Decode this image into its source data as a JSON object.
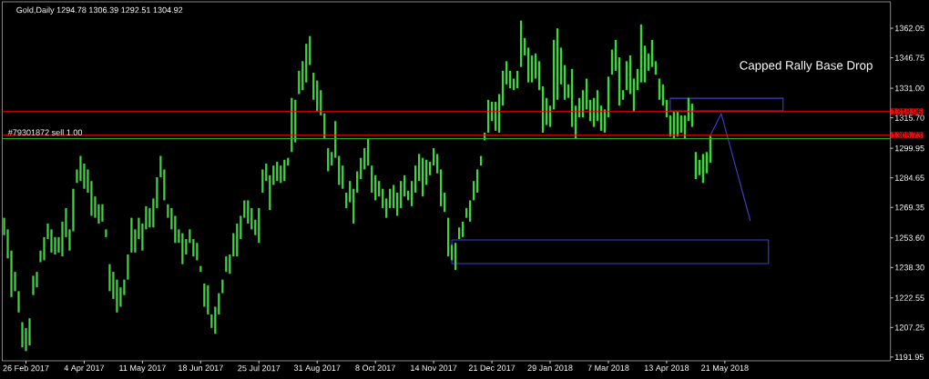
{
  "chart_data": {
    "type": "bar",
    "title": "Gold,Daily 1294.78 1306.39 1292.51 1304.92",
    "annotations": [
      "Capped Rally Base Drop",
      {
        "text": "#79301872 sell 1.00",
        "y": 1304.92
      }
    ],
    "categories": [
      null,
      null,
      null,
      null,
      null,
      null,
      "26 Feb 2017",
      null,
      null,
      null,
      null,
      null,
      null,
      null,
      null,
      null,
      null,
      null,
      null,
      null,
      null,
      null,
      "4 Apr 2017",
      null,
      null,
      null,
      null,
      null,
      null,
      null,
      null,
      null,
      null,
      null,
      null,
      null,
      null,
      null,
      "11 May 2017",
      null,
      null,
      null,
      null,
      null,
      null,
      null,
      null,
      null,
      null,
      null,
      null,
      null,
      null,
      null,
      "18 Jun 2017",
      null,
      null,
      null,
      null,
      null,
      null,
      null,
      null,
      null,
      null,
      null,
      null,
      null,
      null,
      null,
      "25 Jul 2017",
      null,
      null,
      null,
      null,
      null,
      null,
      null,
      null,
      null,
      null,
      null,
      null,
      null,
      null,
      null,
      "31 Aug 2017",
      null,
      null,
      null,
      null,
      null,
      null,
      null,
      null,
      null,
      null,
      null,
      null,
      null,
      null,
      null,
      "8 Oct 2017",
      null,
      null,
      null,
      null,
      null,
      null,
      null,
      null,
      null,
      null,
      null,
      null,
      null,
      null,
      null,
      "14 Nov 2017",
      null,
      null,
      null,
      null,
      null,
      null,
      null,
      null,
      null,
      null,
      null,
      null,
      null,
      null,
      null,
      "21 Dec 2017",
      null,
      null,
      null,
      null,
      null,
      null,
      null,
      null,
      null,
      null,
      null,
      null,
      null,
      null,
      null,
      "29 Jan 2018",
      null,
      null,
      null,
      null,
      null,
      null,
      null,
      null,
      null,
      null,
      null,
      null,
      null,
      null,
      null,
      "7 Mar 2018",
      null,
      null,
      null,
      null,
      null,
      null,
      null,
      null,
      null,
      null,
      null,
      null,
      null,
      null,
      null,
      "13 Apr 2018",
      null,
      null,
      null,
      null,
      null,
      null,
      null,
      null,
      null,
      null,
      null,
      null,
      null,
      null,
      null,
      "21 May 2018",
      null,
      null,
      null,
      null,
      null,
      null,
      null,
      null,
      null,
      null,
      null,
      null,
      null,
      null,
      null,
      null,
      null,
      null,
      null,
      null,
      null,
      null,
      null,
      null,
      null,
      null,
      null,
      null,
      null,
      null,
      null,
      null,
      null,
      null,
      null,
      null,
      null,
      null,
      null,
      null,
      null,
      null,
      null,
      null,
      null
    ],
    "ylim": [
      1190,
      1375.7
    ],
    "yticks": [
      {
        "value": 1191.95,
        "label": "1191.95"
      },
      {
        "value": 1207.25,
        "label": "1207.25"
      },
      {
        "value": 1222.55,
        "label": "1222.55"
      },
      {
        "value": 1238.3,
        "label": "1238.30"
      },
      {
        "value": 1253.6,
        "label": "1253.60"
      },
      {
        "value": 1269.35,
        "label": "1269.35"
      },
      {
        "value": 1284.65,
        "label": "1284.65"
      },
      {
        "value": 1299.95,
        "label": "1299.95"
      },
      {
        "value": 1315.7,
        "label": "1315.70"
      },
      {
        "value": 1331,
        "label": "1331.00"
      },
      {
        "value": 1346.75,
        "label": "1346.75"
      },
      {
        "value": 1362.05,
        "label": "1362.05"
      }
    ],
    "ref_lines": [
      {
        "axis": "y",
        "value": 1318.96,
        "label": "1318.96",
        "color": "#ff0000"
      },
      {
        "axis": "y",
        "value": 1306.73,
        "label": "1306.73",
        "color": "#ff0000"
      },
      {
        "axis": "y",
        "value": 1304.92,
        "color": "#22aa22"
      }
    ],
    "series": [
      {
        "color": "#33dd33",
        "base": [
          1255,
          1243,
          1223,
          1226,
          1215,
          1197,
          1195,
          1198,
          1224,
          1228,
          1241,
          1242,
          1253,
          1246,
          1245,
          1246,
          1244,
          1254,
          1247,
          1257,
          1282,
          1283,
          1279,
          1277,
          1265,
          1264,
          1261,
          1262,
          1254,
          1226,
          1222,
          1215,
          1218,
          1224,
          1232,
          1246,
          1246,
          1253,
          1247,
          1258,
          1259,
          1259,
          1269,
          1285,
          1273,
          1264,
          1258,
          1251,
          1251,
          1240,
          1245,
          1251,
          1244,
          1242,
          1236,
          1218,
          1214,
          1207,
          1204,
          1214,
          1225,
          1236,
          1235,
          1244,
          1244,
          1253,
          1264,
          1261,
          1258,
          1255,
          1251,
          1277,
          1283,
          1268,
          1281,
          1283,
          1282,
          1283,
          1291,
          1298,
          1303,
          1328,
          1330,
          1334,
          1343,
          1325,
          1319,
          1317,
          1305,
          1288,
          1291,
          1295,
          1281,
          1279,
          1269,
          1272,
          1261,
          1277,
          1284,
          1289,
          1291,
          1277,
          1273,
          1275,
          1269,
          1264,
          1269,
          1269,
          1265,
          1269,
          1275,
          1273,
          1270,
          1277,
          1283,
          1275,
          1281,
          1286,
          1291,
          1287,
          1270,
          1267,
          1244,
          1242,
          1237,
          1253,
          1254,
          1264,
          1262,
          1273,
          1277,
          1291,
          1304,
          1308,
          1314,
          1309,
          1308,
          1322,
          1333,
          1331,
          1330,
          1331,
          1342,
          1348,
          1334,
          1334,
          1336,
          1330,
          1308,
          1312,
          1311,
          1320,
          1325,
          1333,
          1325,
          1326,
          1311,
          1305,
          1316,
          1316,
          1320,
          1314,
          1311,
          1314,
          1309,
          1308,
          1316,
          1338,
          1340,
          1322,
          1325,
          1330,
          1328,
          1319,
          1330,
          1334,
          1334,
          1340,
          1342,
          1338,
          1325,
          1322,
          1316,
          1306,
          1305,
          1306,
          1308,
          1305,
          1314,
          1311,
          1284,
          1286,
          1282,
          1287,
          1292.5,
          null,
          null,
          null,
          null,
          null,
          null,
          null,
          null,
          null,
          null,
          null,
          null,
          null,
          null,
          null,
          null,
          null,
          null,
          null,
          null,
          null,
          null,
          null,
          null,
          null,
          null,
          null,
          null,
          null,
          null,
          null,
          null,
          null,
          null,
          null,
          null,
          null,
          null,
          null,
          null,
          null,
          null,
          null,
          null,
          null,
          null,
          null,
          null,
          null
        ],
        "values": [
          9,
          15,
          24,
          10,
          11,
          13,
          12,
          14,
          10,
          8,
          6,
          12,
          8,
          12,
          9,
          8,
          18,
          15,
          11,
          22,
          7,
          13,
          13,
          12,
          18,
          11,
          10,
          9,
          4,
          14,
          14,
          17,
          10,
          8,
          13,
          18,
          12,
          11,
          14,
          12,
          10,
          15,
          16,
          11,
          16,
          7,
          11,
          14,
          7,
          16,
          8,
          7,
          9,
          9,
          3,
          12,
          15,
          7,
          14,
          11,
          7,
          8,
          10,
          12,
          17,
          12,
          9,
          12,
          11,
          8,
          18,
          12,
          9,
          18,
          10,
          10,
          9,
          11,
          4,
          28,
          22,
          12,
          15,
          20,
          15,
          14,
          16,
          13,
          13,
          12,
          7,
          19,
          15,
          12,
          8,
          11,
          18,
          11,
          11,
          11,
          14,
          14,
          13,
          8,
          10,
          10,
          10,
          12,
          12,
          14,
          11,
          5,
          13,
          14,
          14,
          20,
          13,
          7,
          9,
          10,
          19,
          10,
          20,
          8,
          14,
          6,
          8,
          5,
          11,
          10,
          12,
          5,
          4,
          17,
          10,
          15,
          20,
          18,
          12,
          9,
          6,
          9,
          24,
          9,
          18,
          14,
          13,
          15,
          24,
          14,
          11,
          36,
          37,
          19,
          18,
          7,
          30,
          17,
          10,
          14,
          16,
          11,
          15,
          16,
          13,
          12,
          21,
          13,
          16,
          25,
          5,
          15,
          20,
          17,
          11,
          30,
          19,
          9,
          14,
          7,
          11,
          11,
          9,
          11,
          14,
          13,
          9,
          12,
          12,
          12,
          14,
          8,
          15,
          11,
          13.9,
          null,
          null,
          null,
          null,
          null,
          null,
          null,
          null,
          null,
          null,
          null,
          null,
          null,
          null,
          null,
          null,
          null,
          null,
          null,
          null,
          null,
          null,
          null,
          null,
          null,
          null,
          null,
          null,
          null,
          null,
          null,
          null,
          null,
          null,
          null,
          null,
          null,
          null,
          null,
          null,
          null,
          null,
          null,
          null,
          null,
          null,
          null,
          null,
          null
        ]
      },
      {
        "type": "line",
        "color": "#4040d0",
        "values": [
          null,
          null,
          null,
          null,
          null,
          null,
          null,
          null,
          null,
          null,
          null,
          null,
          null,
          null,
          null,
          null,
          null,
          null,
          null,
          null,
          null,
          null,
          null,
          null,
          null,
          null,
          null,
          null,
          null,
          null,
          null,
          null,
          null,
          null,
          null,
          null,
          null,
          null,
          null,
          null,
          null,
          null,
          null,
          null,
          null,
          null,
          null,
          null,
          null,
          null,
          null,
          null,
          null,
          null,
          null,
          null,
          null,
          null,
          null,
          null,
          null,
          null,
          null,
          null,
          null,
          null,
          null,
          null,
          null,
          null,
          null,
          null,
          null,
          null,
          null,
          null,
          null,
          null,
          null,
          null,
          null,
          null,
          null,
          null,
          null,
          null,
          null,
          null,
          null,
          null,
          null,
          null,
          null,
          null,
          null,
          null,
          null,
          null,
          null,
          null,
          null,
          null,
          null,
          null,
          null,
          null,
          null,
          null,
          null,
          null,
          null,
          null,
          null,
          null,
          null,
          null,
          null,
          null,
          null,
          null,
          null,
          null,
          null,
          null,
          null,
          null,
          null,
          null,
          null,
          null,
          null,
          null,
          null,
          null,
          null,
          null,
          null,
          null,
          null,
          null,
          null,
          null,
          null,
          null,
          null,
          null,
          null,
          null,
          null,
          null,
          null,
          null,
          null,
          null,
          null,
          null,
          null,
          null,
          null,
          null,
          null,
          null,
          null,
          null,
          null,
          null,
          null,
          null,
          null,
          null,
          null,
          null,
          null,
          null,
          null,
          null,
          null,
          null,
          null,
          null,
          null,
          null,
          null,
          null,
          null,
          null,
          null,
          null,
          null,
          null,
          null,
          null,
          null,
          null,
          1306.6,
          null,
          null,
          1317.8,
          null,
          null,
          null,
          null,
          null,
          null,
          null,
          1262.4,
          null,
          null,
          null,
          null,
          null,
          null,
          null,
          null,
          null,
          null,
          null,
          null,
          null,
          null,
          null,
          null,
          null,
          null,
          null,
          null,
          null,
          null,
          null,
          null,
          null,
          null,
          null,
          null,
          null,
          null,
          null,
          null,
          null,
          null,
          null,
          null,
          null,
          null
        ]
      },
      {
        "type": "line",
        "color": "#4040d0",
        "values": [
          null,
          null,
          null,
          null,
          null,
          null,
          null,
          null,
          null,
          null,
          null,
          null,
          null,
          null,
          null,
          null,
          null,
          null,
          null,
          null,
          null,
          null,
          null,
          null,
          null,
          null,
          null,
          null,
          null,
          null,
          null,
          null,
          null,
          null,
          null,
          null,
          null,
          null,
          null,
          null,
          null,
          null,
          null,
          null,
          null,
          null,
          null,
          null,
          null,
          null,
          null,
          null,
          null,
          null,
          null,
          null,
          null,
          null,
          null,
          null,
          null,
          null,
          null,
          null,
          null,
          null,
          null,
          null,
          null,
          null,
          null,
          null,
          null,
          null,
          null,
          null,
          null,
          null,
          null,
          null,
          null,
          null,
          null,
          null,
          null,
          null,
          null,
          null,
          null,
          null,
          null,
          null,
          null,
          null,
          null,
          null,
          null,
          null,
          null,
          null,
          null,
          null,
          null,
          null,
          null,
          null,
          null,
          null,
          null,
          null,
          null,
          null,
          null,
          null,
          null,
          null,
          null,
          null,
          null,
          null,
          null,
          null,
          null,
          null,
          null,
          null,
          null,
          null,
          null,
          null,
          null,
          null,
          null,
          null,
          null,
          null,
          null,
          null,
          null,
          null,
          null,
          null,
          null,
          null,
          null,
          null,
          null,
          null,
          null,
          null,
          null,
          null,
          null,
          null,
          null,
          null,
          null,
          null,
          null,
          null,
          null,
          null,
          null,
          null,
          null,
          null,
          null,
          null,
          null,
          null,
          null,
          null,
          null,
          null,
          null,
          null,
          null,
          null,
          null,
          null,
          null,
          null,
          null,
          null,
          null,
          null,
          null,
          null,
          null,
          null,
          null,
          null,
          null,
          null,
          null,
          null,
          null,
          null,
          null,
          null,
          null,
          null,
          null,
          null,
          null,
          null,
          null,
          null,
          null,
          null,
          null,
          null,
          null,
          null,
          null,
          null,
          null,
          null,
          null,
          null,
          null,
          null,
          null,
          null,
          null,
          null,
          null,
          null,
          null,
          null,
          null,
          null,
          null,
          null,
          null,
          null,
          null,
          null,
          null,
          null,
          null,
          null,
          null,
          null
        ],
        "lower": [
          null,
          null,
          null,
          null,
          null,
          null,
          null,
          null,
          null,
          null,
          null,
          null,
          null,
          null,
          null,
          null,
          null,
          null,
          null,
          null,
          null,
          null,
          null,
          null,
          null,
          null,
          null,
          null,
          null,
          null,
          null,
          null,
          null,
          null,
          null,
          null,
          null,
          null,
          null,
          null,
          null,
          null,
          null,
          null,
          null,
          null,
          null,
          null,
          null,
          null,
          null,
          null,
          null,
          null,
          null,
          null,
          null,
          null,
          null,
          null,
          null,
          null,
          null,
          null,
          null,
          null,
          null,
          null,
          null,
          null,
          null,
          null,
          null,
          null,
          null,
          null,
          null,
          null,
          null,
          null,
          null,
          null,
          null,
          null,
          null,
          null,
          null,
          null,
          null,
          null,
          null,
          null,
          null,
          null,
          null,
          null,
          null,
          null,
          null,
          null,
          null,
          null,
          null,
          null,
          null,
          null,
          null,
          null,
          null,
          null,
          null,
          null,
          null,
          null,
          null,
          null,
          null,
          null,
          null,
          null,
          null,
          null,
          null,
          1240.3,
          null,
          null,
          null,
          null,
          null,
          null,
          null,
          null,
          null,
          null,
          null,
          null,
          null,
          null,
          null,
          null,
          null,
          null,
          null,
          null,
          null,
          null,
          null,
          null,
          null,
          null,
          null,
          null,
          null,
          null,
          null,
          null,
          null,
          null,
          null,
          null,
          null,
          null,
          null,
          null,
          null,
          null,
          null,
          null,
          null,
          null,
          null,
          null,
          null,
          null,
          null,
          null,
          null,
          null,
          null,
          null,
          null,
          null,
          null,
          null,
          null,
          null,
          null,
          null,
          null,
          null,
          null,
          null,
          null,
          null,
          null,
          null,
          null,
          null,
          null,
          null,
          null,
          null,
          null,
          null,
          null,
          null,
          null,
          null,
          null,
          null,
          1240.3,
          null,
          null,
          null,
          null,
          null,
          null,
          null,
          null,
          null,
          null,
          null,
          null,
          null,
          null,
          null,
          null,
          null,
          null,
          null,
          null,
          null,
          null,
          null,
          null,
          null,
          null,
          null,
          null,
          null,
          null,
          null,
          null,
          null
        ],
        "upper": [
          null,
          null,
          null,
          null,
          null,
          null,
          null,
          null,
          null,
          null,
          null,
          null,
          null,
          null,
          null,
          null,
          null,
          null,
          null,
          null,
          null,
          null,
          null,
          null,
          null,
          null,
          null,
          null,
          null,
          null,
          null,
          null,
          null,
          null,
          null,
          null,
          null,
          null,
          null,
          null,
          null,
          null,
          null,
          null,
          null,
          null,
          null,
          null,
          null,
          null,
          null,
          null,
          null,
          null,
          null,
          null,
          null,
          null,
          null,
          null,
          null,
          null,
          null,
          null,
          null,
          null,
          null,
          null,
          null,
          null,
          null,
          null,
          null,
          null,
          null,
          null,
          null,
          null,
          null,
          null,
          null,
          null,
          null,
          null,
          null,
          null,
          null,
          null,
          null,
          null,
          null,
          null,
          null,
          null,
          null,
          null,
          null,
          null,
          null,
          null,
          null,
          null,
          null,
          null,
          null,
          null,
          null,
          null,
          null,
          null,
          null,
          null,
          null,
          null,
          null,
          null,
          null,
          null,
          null,
          null,
          null,
          null,
          null,
          1252.5,
          null,
          null,
          null,
          null,
          null,
          null,
          null,
          null,
          null,
          null,
          null,
          null,
          null,
          null,
          null,
          null,
          null,
          null,
          null,
          null,
          null,
          null,
          null,
          null,
          null,
          null,
          null,
          null,
          null,
          null,
          null,
          null,
          null,
          null,
          null,
          null,
          null,
          null,
          null,
          null,
          null,
          null,
          null,
          null,
          null,
          null,
          null,
          null,
          null,
          null,
          null,
          null,
          null,
          null,
          null,
          null,
          null,
          null,
          null,
          null,
          null,
          null,
          null,
          null,
          null,
          null,
          null,
          null,
          null,
          null,
          null,
          null,
          null,
          null,
          null,
          null,
          null,
          null,
          null,
          null,
          null,
          null,
          null,
          null,
          null,
          null,
          1252.5,
          null,
          null,
          null,
          null,
          null,
          null,
          null,
          null,
          null,
          null,
          null,
          null,
          null,
          null,
          null,
          null,
          null,
          null,
          null,
          null,
          null,
          null,
          null,
          null,
          null,
          null,
          null,
          null,
          null,
          null,
          null,
          null,
          null
        ]
      },
      {
        "type": "line",
        "color": "#4040d0",
        "values": [
          null,
          null,
          null,
          null,
          null,
          null,
          null,
          null,
          null,
          null,
          null,
          null,
          null,
          null,
          null,
          null,
          null,
          null,
          null,
          null,
          null,
          null,
          null,
          null,
          null,
          null,
          null,
          null,
          null,
          null,
          null,
          null,
          null,
          null,
          null,
          null,
          null,
          null,
          null,
          null,
          null,
          null,
          null,
          null,
          null,
          null,
          null,
          null,
          null,
          null,
          null,
          null,
          null,
          null,
          null,
          null,
          null,
          null,
          null,
          null,
          null,
          null,
          null,
          null,
          null,
          null,
          null,
          null,
          null,
          null,
          null,
          null,
          null,
          null,
          null,
          null,
          null,
          null,
          null,
          null,
          null,
          null,
          null,
          null,
          null,
          null,
          null,
          null,
          null,
          null,
          null,
          null,
          null,
          null,
          null,
          null,
          null,
          null,
          null,
          null,
          null,
          null,
          null,
          null,
          null,
          null,
          null,
          null,
          null,
          null,
          null,
          null,
          null,
          null,
          null,
          null,
          null,
          null,
          null,
          null,
          null,
          null,
          null,
          null,
          null,
          null,
          null,
          null,
          null,
          null,
          null,
          null,
          null,
          null,
          null,
          null,
          null,
          null,
          null,
          null,
          null,
          null,
          null,
          null,
          null,
          null,
          null,
          null,
          null,
          null,
          null,
          null,
          null,
          null,
          null,
          null,
          null,
          null,
          null,
          null,
          null,
          null,
          null,
          null,
          null,
          null,
          null,
          null,
          null,
          null,
          null,
          null,
          null,
          null,
          null,
          null,
          null,
          null,
          null,
          null,
          null,
          null,
          null,
          null,
          null,
          null,
          null,
          null,
          null,
          null,
          null,
          null,
          null,
          null,
          null,
          null,
          null,
          null,
          null,
          null,
          null,
          null,
          null,
          null,
          null,
          null,
          null,
          null,
          null,
          null,
          null,
          null,
          null,
          null,
          null,
          null,
          null,
          null,
          null,
          null,
          null,
          null,
          null,
          null,
          null,
          null,
          null,
          null,
          null,
          null,
          null,
          null,
          null,
          null,
          null,
          null,
          null,
          null,
          null,
          null,
          null,
          null,
          null,
          null
        ],
        "lower": [
          null,
          null,
          null,
          null,
          null,
          null,
          null,
          null,
          null,
          null,
          null,
          null,
          null,
          null,
          null,
          null,
          null,
          null,
          null,
          null,
          null,
          null,
          null,
          null,
          null,
          null,
          null,
          null,
          null,
          null,
          null,
          null,
          null,
          null,
          null,
          null,
          null,
          null,
          null,
          null,
          null,
          null,
          null,
          null,
          null,
          null,
          null,
          null,
          null,
          null,
          null,
          null,
          null,
          null,
          null,
          null,
          null,
          null,
          null,
          null,
          null,
          null,
          null,
          null,
          null,
          null,
          null,
          null,
          null,
          null,
          null,
          null,
          null,
          null,
          null,
          null,
          null,
          null,
          null,
          null,
          null,
          null,
          null,
          null,
          null,
          null,
          null,
          null,
          null,
          null,
          null,
          null,
          null,
          null,
          null,
          null,
          null,
          null,
          null,
          null,
          null,
          null,
          null,
          null,
          null,
          null,
          null,
          null,
          null,
          null,
          null,
          null,
          null,
          null,
          null,
          null,
          null,
          null,
          null,
          null,
          null,
          null,
          null,
          null,
          null,
          null,
          null,
          null,
          null,
          null,
          null,
          null,
          null,
          null,
          null,
          null,
          null,
          null,
          null,
          null,
          null,
          null,
          null,
          null,
          null,
          null,
          null,
          null,
          null,
          null,
          null,
          null,
          null,
          null,
          null,
          null,
          null,
          null,
          null,
          null,
          null,
          null,
          null,
          null,
          null,
          null,
          null,
          null,
          null,
          null,
          null,
          null,
          null,
          null,
          null,
          null,
          null,
          null,
          null,
          null,
          null,
          null,
          null,
          1319.3,
          null,
          null,
          null,
          null,
          null,
          null,
          null,
          null,
          null,
          null,
          null,
          null,
          null,
          null,
          null,
          null,
          null,
          null,
          null,
          null,
          null,
          null,
          null,
          null,
          null,
          null,
          null,
          null,
          null,
          null,
          1319.3,
          null,
          null,
          null,
          null,
          null,
          null,
          null,
          null,
          null,
          null,
          null,
          null,
          null,
          null,
          null,
          null,
          null,
          null,
          null,
          null,
          null,
          null,
          null,
          null,
          null,
          null,
          null,
          null,
          null
        ],
        "upper": [
          null,
          null,
          null,
          null,
          null,
          null,
          null,
          null,
          null,
          null,
          null,
          null,
          null,
          null,
          null,
          null,
          null,
          null,
          null,
          null,
          null,
          null,
          null,
          null,
          null,
          null,
          null,
          null,
          null,
          null,
          null,
          null,
          null,
          null,
          null,
          null,
          null,
          null,
          null,
          null,
          null,
          null,
          null,
          null,
          null,
          null,
          null,
          null,
          null,
          null,
          null,
          null,
          null,
          null,
          null,
          null,
          null,
          null,
          null,
          null,
          null,
          null,
          null,
          null,
          null,
          null,
          null,
          null,
          null,
          null,
          null,
          null,
          null,
          null,
          null,
          null,
          null,
          null,
          null,
          null,
          null,
          null,
          null,
          null,
          null,
          null,
          null,
          null,
          null,
          null,
          null,
          null,
          null,
          null,
          null,
          null,
          null,
          null,
          null,
          null,
          null,
          null,
          null,
          null,
          null,
          null,
          null,
          null,
          null,
          null,
          null,
          null,
          null,
          null,
          null,
          null,
          null,
          null,
          null,
          null,
          null,
          null,
          null,
          null,
          null,
          null,
          null,
          null,
          null,
          null,
          null,
          null,
          null,
          null,
          null,
          null,
          null,
          null,
          null,
          null,
          null,
          null,
          null,
          null,
          null,
          null,
          null,
          null,
          null,
          null,
          null,
          null,
          null,
          null,
          null,
          null,
          null,
          null,
          null,
          null,
          null,
          null,
          null,
          null,
          null,
          null,
          null,
          null,
          null,
          null,
          null,
          null,
          null,
          null,
          null,
          null,
          null,
          null,
          null,
          null,
          null,
          null,
          null,
          1325.8,
          null,
          null,
          null,
          null,
          null,
          null,
          null,
          null,
          null,
          null,
          null,
          null,
          null,
          null,
          null,
          null,
          null,
          null,
          null,
          null,
          null,
          null,
          null,
          null,
          null,
          null,
          null,
          null,
          null,
          null,
          1325.8,
          null,
          null,
          null,
          null,
          null,
          null,
          null,
          null,
          null,
          null,
          null,
          null,
          null,
          null,
          null,
          null,
          null,
          null,
          null,
          null,
          null,
          null,
          null,
          null,
          null,
          null,
          null,
          null,
          null
        ]
      }
    ]
  }
}
